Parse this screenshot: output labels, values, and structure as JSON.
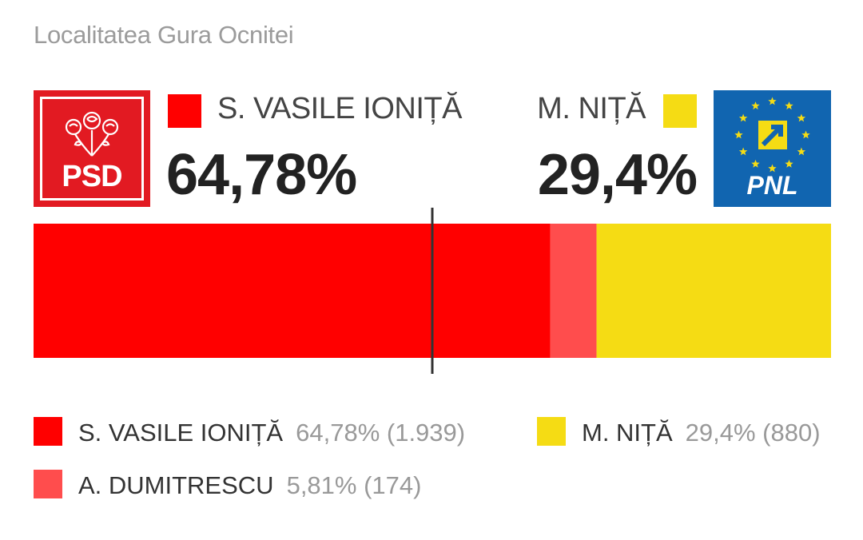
{
  "header": {
    "title": "Localitatea Gura Ocnitei"
  },
  "leader": {
    "name": "S. VASILE IONIȚĂ",
    "pct": "64,78%",
    "party_logo_text": "PSD",
    "color": "#ff0000"
  },
  "runner_up": {
    "name": "M. NIȚĂ",
    "pct": "29,4%",
    "party_logo_text": "PNL",
    "color": "#f5dc14"
  },
  "chart_data": {
    "type": "bar",
    "orientation": "horizontal-stacked",
    "categories": [
      "S. VASILE IONIȚĂ",
      "A. DUMITRESCU",
      "M. NIȚĂ"
    ],
    "series": [
      {
        "name": "S. VASILE IONIȚĂ",
        "value": 64.78,
        "votes": 1939,
        "label": "64,78% (1.939)",
        "color": "#ff0000"
      },
      {
        "name": "A. DUMITRESCU",
        "value": 5.81,
        "votes": 174,
        "label": "5,81% (174)",
        "color": "#ff4d4d"
      },
      {
        "name": "M. NIȚĂ",
        "value": 29.4,
        "votes": 880,
        "label": "29,4% (880)",
        "color": "#f5dc14"
      }
    ],
    "xlim": [
      0,
      100
    ],
    "reference_line": 50,
    "legend_placement": "bottom"
  }
}
